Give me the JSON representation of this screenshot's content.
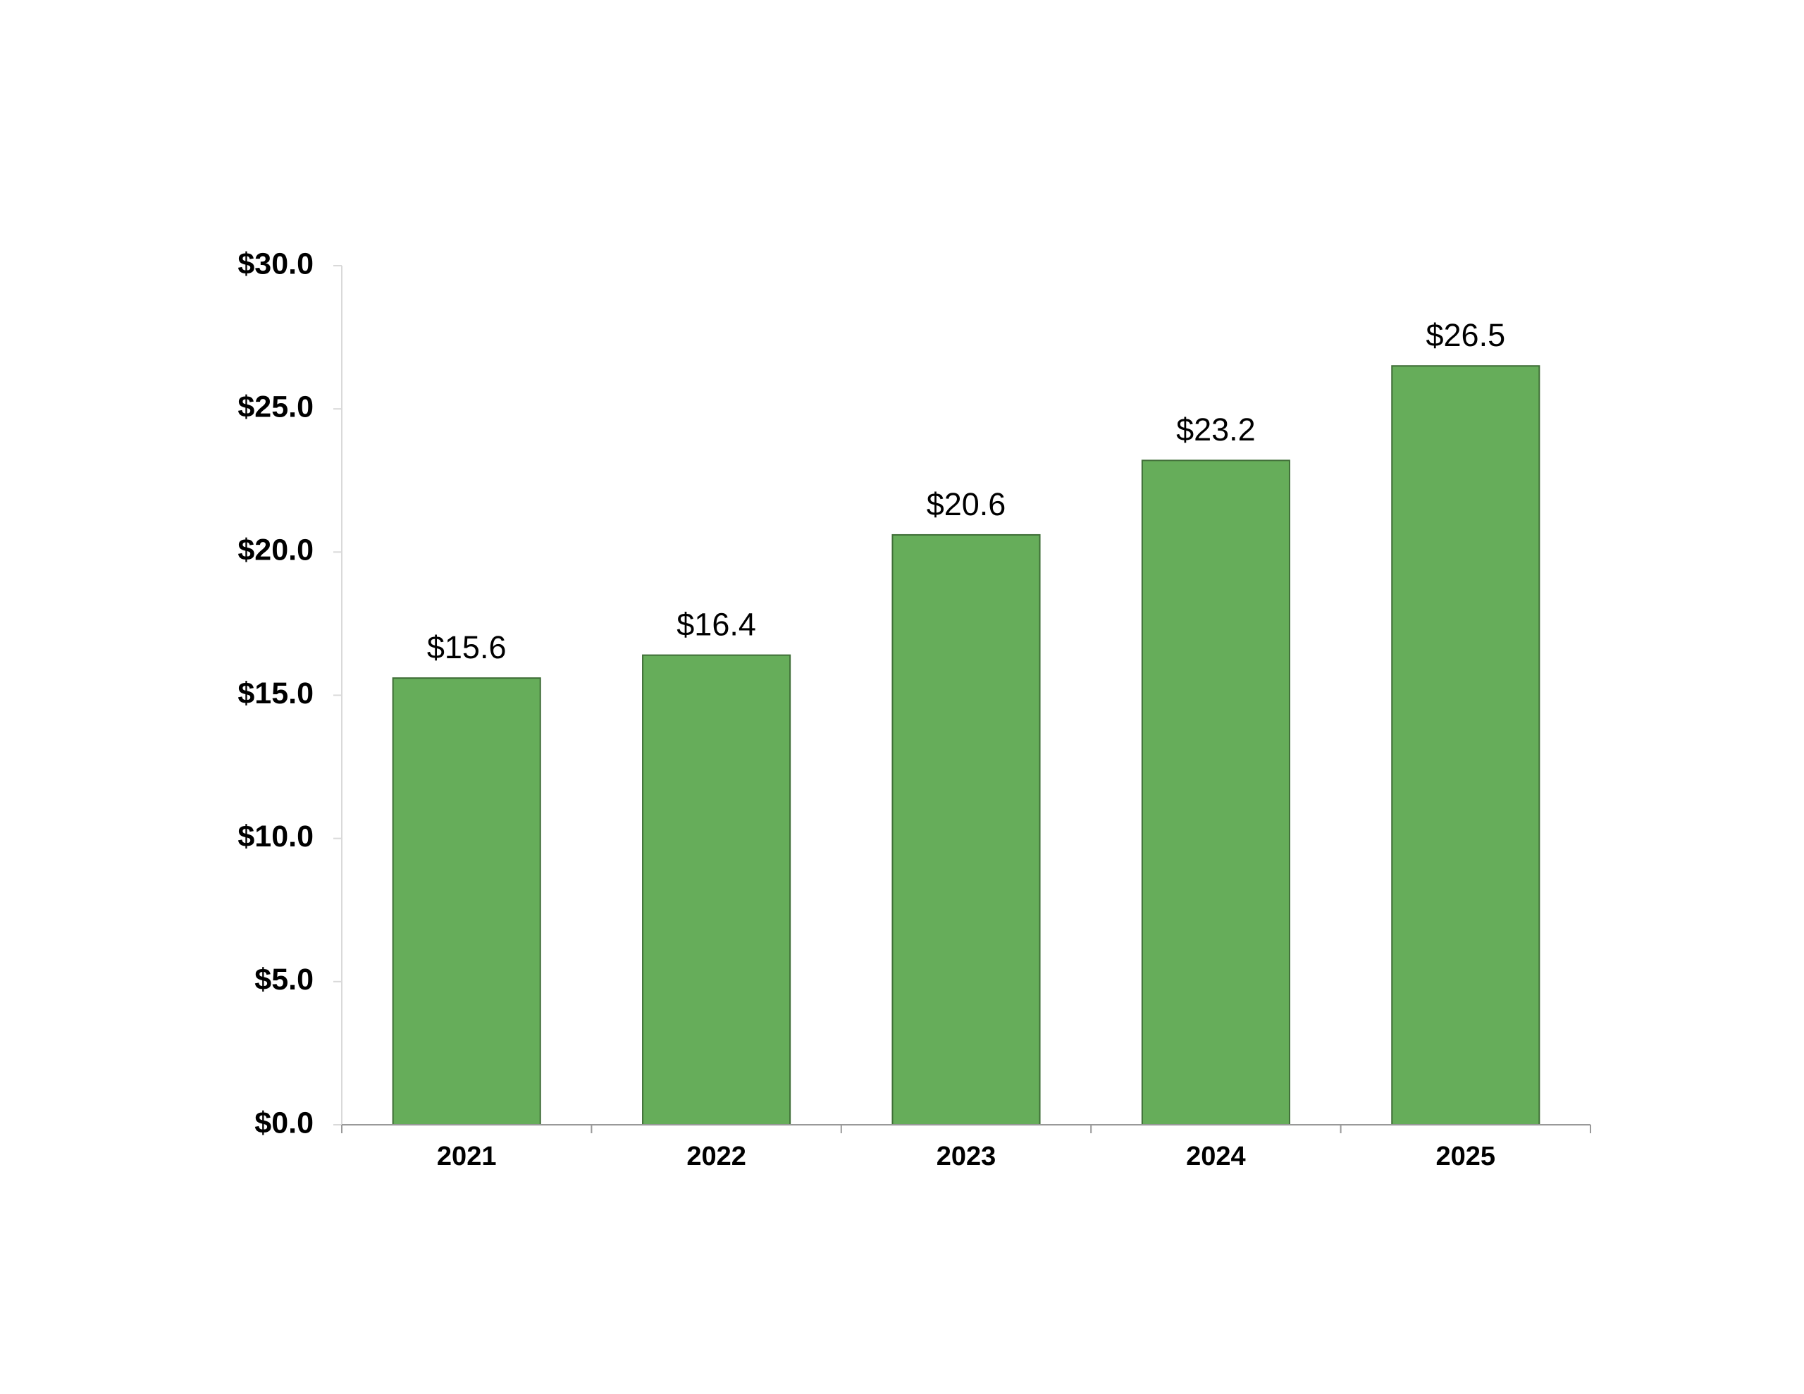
{
  "chart_data": {
    "type": "bar",
    "categories": [
      "2021",
      "2022",
      "2023",
      "2024",
      "2025"
    ],
    "values": [
      15.6,
      16.4,
      20.6,
      23.2,
      26.5
    ],
    "value_labels": [
      "$15.6",
      "$16.4",
      "$20.6",
      "$23.2",
      "$26.5"
    ],
    "color": "#66ad5a",
    "ylim": [
      0,
      30
    ],
    "yticks": [
      {
        "value": 0,
        "label": "$0.0"
      },
      {
        "value": 5,
        "label": "$5.0"
      },
      {
        "value": 10,
        "label": "$10.0"
      },
      {
        "value": 15,
        "label": "$15.0"
      },
      {
        "value": 20,
        "label": "$20.0"
      },
      {
        "value": 25,
        "label": "$25.0"
      },
      {
        "value": 30,
        "label": "$30.0"
      }
    ],
    "grid": false
  }
}
